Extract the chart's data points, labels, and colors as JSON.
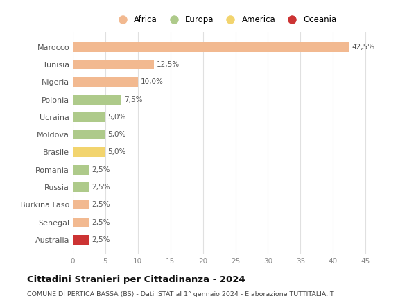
{
  "countries": [
    "Marocco",
    "Tunisia",
    "Nigeria",
    "Polonia",
    "Ucraina",
    "Moldova",
    "Brasile",
    "Romania",
    "Russia",
    "Burkina Faso",
    "Senegal",
    "Australia"
  ],
  "values": [
    42.5,
    12.5,
    10.0,
    7.5,
    5.0,
    5.0,
    5.0,
    2.5,
    2.5,
    2.5,
    2.5,
    2.5
  ],
  "labels": [
    "42,5%",
    "12,5%",
    "10,0%",
    "7,5%",
    "5,0%",
    "5,0%",
    "5,0%",
    "2,5%",
    "2,5%",
    "2,5%",
    "2,5%",
    "2,5%"
  ],
  "colors": [
    "#F2B990",
    "#F2B990",
    "#F2B990",
    "#AECA8A",
    "#AECA8A",
    "#AECA8A",
    "#F2D46E",
    "#AECA8A",
    "#AECA8A",
    "#F2B990",
    "#F2B990",
    "#CC3333"
  ],
  "legend_labels": [
    "Africa",
    "Europa",
    "America",
    "Oceania"
  ],
  "legend_colors": [
    "#F2B990",
    "#AECA8A",
    "#F2D46E",
    "#CC3333"
  ],
  "xlim": [
    0,
    47
  ],
  "xticks": [
    0,
    5,
    10,
    15,
    20,
    25,
    30,
    35,
    40,
    45
  ],
  "title": "Cittadini Stranieri per Cittadinanza - 2024",
  "subtitle": "COMUNE DI PERTICA BASSA (BS) - Dati ISTAT al 1° gennaio 2024 - Elaborazione TUTTITALIA.IT",
  "bg_color": "#ffffff",
  "grid_color": "#e0e0e0"
}
